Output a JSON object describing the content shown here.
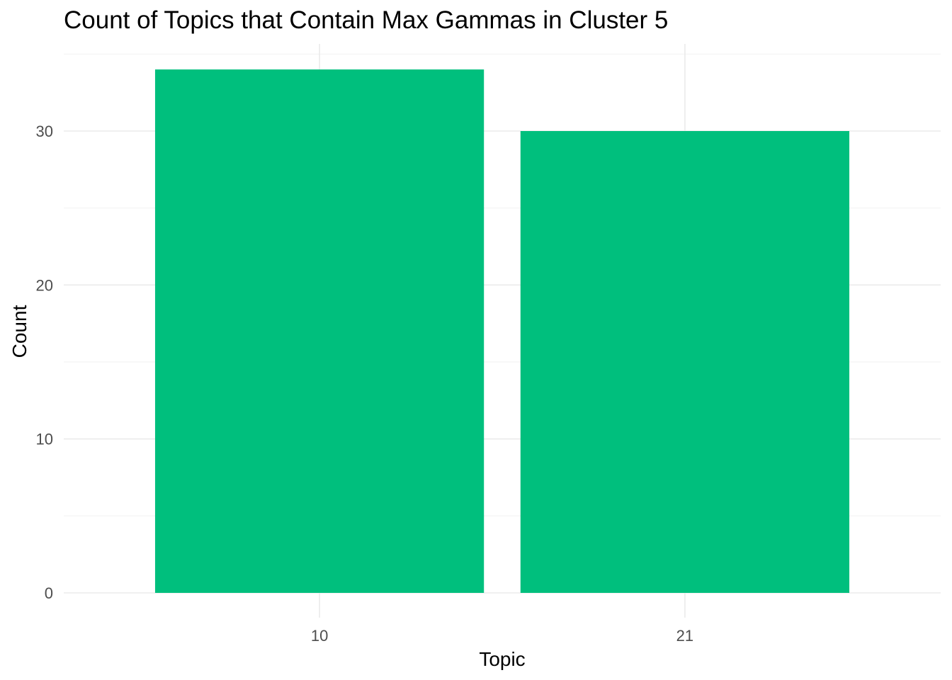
{
  "chart_data": {
    "type": "bar",
    "title": "Count of Topics that Contain Max Gammas in Cluster 5",
    "xlabel": "Topic",
    "ylabel": "Count",
    "categories": [
      "10",
      "21"
    ],
    "values": [
      34,
      30
    ],
    "ylim": [
      0,
      34
    ],
    "yticks": [
      0,
      10,
      20,
      30
    ],
    "yticks_labels": [
      "0",
      "10",
      "20",
      "30"
    ],
    "grid": true,
    "legend": "none",
    "bar_color": "#00BF7D"
  }
}
